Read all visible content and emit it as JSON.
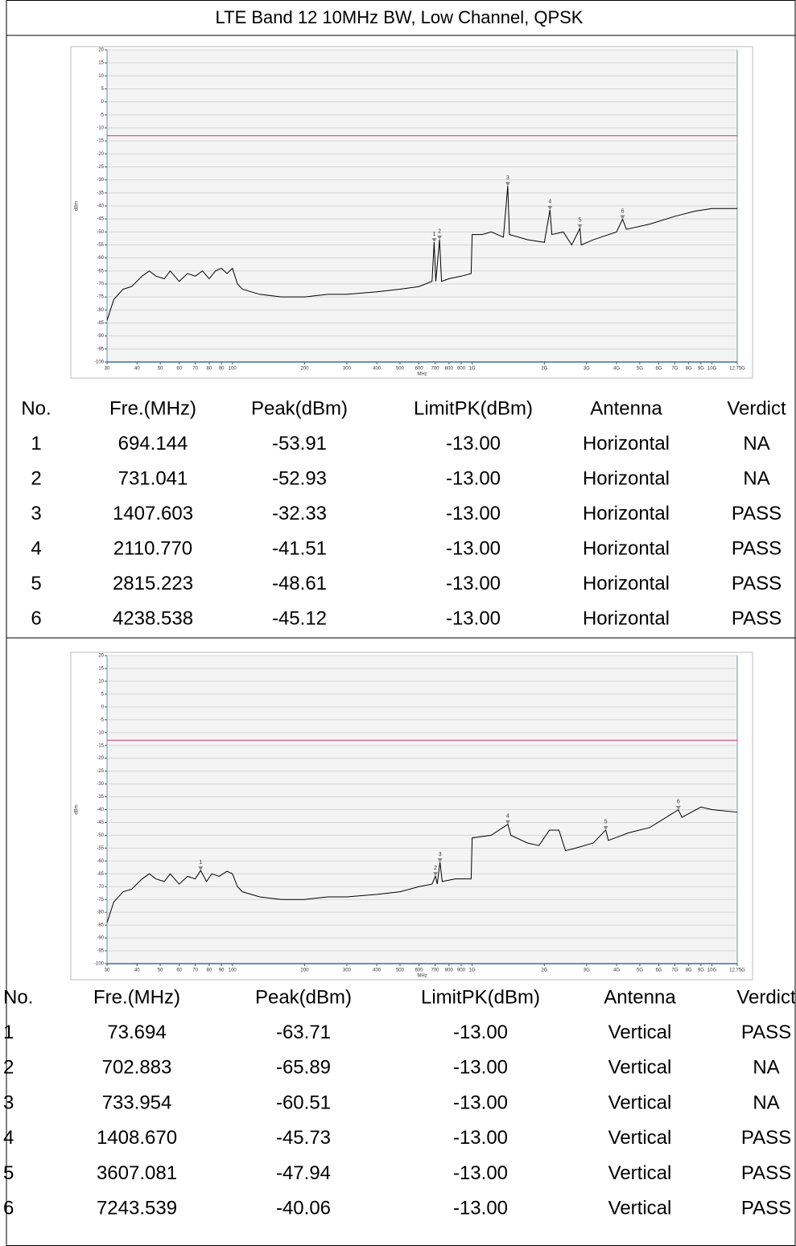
{
  "title": "LTE Band 12 10MHz BW, Low Channel, QPSK",
  "chart_data": [
    {
      "type": "line",
      "ylabel": "dBm",
      "xlabel": "MHz",
      "log_x": true,
      "grid": "y",
      "xlim": [
        30,
        12750
      ],
      "xticks": [
        30,
        40,
        50,
        60,
        70,
        80,
        90,
        100,
        200,
        300,
        400,
        500,
        600,
        700,
        800,
        900,
        {
          "value": 1000,
          "label": "1G"
        },
        {
          "value": 2000,
          "label": "2G"
        },
        {
          "value": 3000,
          "label": "3G"
        },
        {
          "value": 4000,
          "label": "4G"
        },
        {
          "value": 5000,
          "label": "5G"
        },
        {
          "value": 6000,
          "label": "6G"
        },
        {
          "value": 7000,
          "label": "7G"
        },
        {
          "value": 8000,
          "label": "8G"
        },
        {
          "value": 9000,
          "label": "9G"
        },
        {
          "value": 10000,
          "label": "10G"
        },
        {
          "value": 12750,
          "label": "12.75G"
        }
      ],
      "ylim": [
        -100,
        20
      ],
      "yticks": [
        -100,
        -95,
        -90,
        -85,
        -80,
        -75,
        -70,
        -65,
        -60,
        -55,
        -50,
        -45,
        -40,
        -35,
        -30,
        -25,
        -20,
        -15,
        -10,
        -5,
        0,
        5,
        10,
        15,
        20
      ],
      "limit": {
        "value": -13,
        "color": "#c8507a"
      },
      "series": [
        {
          "color": "#000000",
          "x": [
            30,
            32,
            35,
            38,
            42,
            45,
            48,
            52,
            55,
            60,
            65,
            70,
            75,
            80,
            85,
            90,
            95,
            100,
            105,
            110,
            130,
            160,
            200,
            250,
            300,
            400,
            500,
            600,
            680,
            694,
            705,
            731,
            745,
            800,
            900,
            990,
            1000,
            1100,
            1200,
            1350,
            1407,
            1430,
            1700,
            2000,
            2110,
            2150,
            2400,
            2600,
            2815,
            2850,
            3200,
            4000,
            4238,
            4400,
            5500,
            7000,
            8500,
            10000,
            12750
          ],
          "values": [
            -84,
            -76,
            -72,
            -71,
            -67,
            -65,
            -67,
            -68,
            -65,
            -69,
            -66,
            -67,
            -65,
            -68,
            -65,
            -64,
            -66,
            -64,
            -70,
            -72,
            -74,
            -75,
            -75,
            -74,
            -74,
            -73,
            -72,
            -71,
            -69,
            -53.91,
            -69,
            -52.93,
            -69,
            -68,
            -67,
            -66,
            -51,
            -51,
            -50,
            -52,
            -32.33,
            -51,
            -53,
            -54,
            -41.51,
            -51,
            -50,
            -55,
            -48.61,
            -55,
            -53,
            -50,
            -45.12,
            -49,
            -47,
            -44,
            -42,
            -41,
            -41
          ]
        }
      ],
      "markers": {
        "color": "#888888",
        "x": [
          694.144,
          731.041,
          1407.603,
          2110.77,
          2815.223,
          4238.538
        ],
        "values": [
          -53.91,
          -52.93,
          -32.33,
          -41.51,
          -48.61,
          -45.12
        ],
        "labels": [
          "1",
          "2",
          "3",
          "4",
          "5",
          "6"
        ]
      }
    },
    {
      "type": "line",
      "ylabel": "dBm",
      "xlabel": "MHz",
      "log_x": true,
      "grid": "y",
      "xlim": [
        30,
        12750
      ],
      "xticks": [
        30,
        40,
        50,
        60,
        70,
        80,
        90,
        100,
        200,
        300,
        400,
        500,
        600,
        700,
        800,
        900,
        {
          "value": 1000,
          "label": "1G"
        },
        {
          "value": 2000,
          "label": "2G"
        },
        {
          "value": 3000,
          "label": "3G"
        },
        {
          "value": 4000,
          "label": "4G"
        },
        {
          "value": 5000,
          "label": "5G"
        },
        {
          "value": 6000,
          "label": "6G"
        },
        {
          "value": 7000,
          "label": "7G"
        },
        {
          "value": 8000,
          "label": "8G"
        },
        {
          "value": 9000,
          "label": "9G"
        },
        {
          "value": 10000,
          "label": "10G"
        },
        {
          "value": 12750,
          "label": "12.75G"
        }
      ],
      "ylim": [
        -100,
        20
      ],
      "yticks": [
        -100,
        -95,
        -90,
        -85,
        -80,
        -75,
        -70,
        -65,
        -60,
        -55,
        -50,
        -45,
        -40,
        -35,
        -30,
        -25,
        -20,
        -15,
        -10,
        -5,
        0,
        5,
        10,
        15,
        20
      ],
      "limit": {
        "value": -13,
        "color": "#c8507a"
      },
      "series": [
        {
          "color": "#000000",
          "x": [
            30,
            32,
            35,
            38,
            42,
            45,
            48,
            52,
            55,
            60,
            65,
            70,
            73.694,
            78,
            82,
            88,
            95,
            100,
            105,
            110,
            130,
            160,
            200,
            250,
            300,
            400,
            500,
            600,
            680,
            702.883,
            715,
            733.954,
            750,
            850,
            990,
            1000,
            1200,
            1408.67,
            1450,
            1700,
            1900,
            2100,
            2300,
            2450,
            2700,
            3200,
            3607.081,
            3700,
            4500,
            5500,
            7243.539,
            7500,
            9000,
            10000,
            12750
          ],
          "values": [
            -84,
            -76,
            -72,
            -71,
            -67,
            -65,
            -67,
            -68,
            -65,
            -69,
            -66,
            -67,
            -63.71,
            -68,
            -65,
            -66,
            -64,
            -65,
            -70,
            -72,
            -74,
            -75,
            -75,
            -74,
            -74,
            -73,
            -72,
            -70,
            -69,
            -65.89,
            -69,
            -60.51,
            -68,
            -67,
            -67,
            -51,
            -50,
            -45.73,
            -50,
            -53,
            -54,
            -48,
            -48,
            -56,
            -55,
            -53,
            -47.94,
            -52,
            -49,
            -47,
            -40.06,
            -43,
            -39,
            -40,
            -41
          ]
        }
      ],
      "markers": {
        "color": "#888888",
        "x": [
          73.694,
          702.883,
          733.954,
          1408.67,
          3607.081,
          7243.539
        ],
        "values": [
          -63.71,
          -65.89,
          -60.51,
          -45.73,
          -47.94,
          -40.06
        ],
        "labels": [
          "1",
          "2",
          "3",
          "4",
          "5",
          "6"
        ]
      }
    }
  ],
  "tables": [
    {
      "header": [
        "No.",
        "Fre.(MHz)",
        "Peak(dBm)",
        "LimitPK(dBm)",
        "Antenna",
        "Verdict"
      ],
      "rows": [
        [
          "1",
          "694.144",
          "-53.91",
          "-13.00",
          "Horizontal",
          "NA"
        ],
        [
          "2",
          "731.041",
          "-52.93",
          "-13.00",
          "Horizontal",
          "NA"
        ],
        [
          "3",
          "1407.603",
          "-32.33",
          "-13.00",
          "Horizontal",
          "PASS"
        ],
        [
          "4",
          "2110.770",
          "-41.51",
          "-13.00",
          "Horizontal",
          "PASS"
        ],
        [
          "5",
          "2815.223",
          "-48.61",
          "-13.00",
          "Horizontal",
          "PASS"
        ],
        [
          "6",
          "4238.538",
          "-45.12",
          "-13.00",
          "Horizontal",
          "PASS"
        ]
      ]
    },
    {
      "header": [
        "No.",
        "Fre.(MHz)",
        "Peak(dBm)",
        "LimitPK(dBm)",
        "Antenna",
        "Verdict"
      ],
      "rows": [
        [
          "1",
          "73.694",
          "-63.71",
          "-13.00",
          "Vertical",
          "PASS"
        ],
        [
          "2",
          "702.883",
          "-65.89",
          "-13.00",
          "Vertical",
          "NA"
        ],
        [
          "3",
          "733.954",
          "-60.51",
          "-13.00",
          "Vertical",
          "NA"
        ],
        [
          "4",
          "1408.670",
          "-45.73",
          "-13.00",
          "Vertical",
          "PASS"
        ],
        [
          "5",
          "3607.081",
          "-47.94",
          "-13.00",
          "Vertical",
          "PASS"
        ],
        [
          "6",
          "7243.539",
          "-40.06",
          "-13.00",
          "Vertical",
          "PASS"
        ]
      ]
    }
  ]
}
